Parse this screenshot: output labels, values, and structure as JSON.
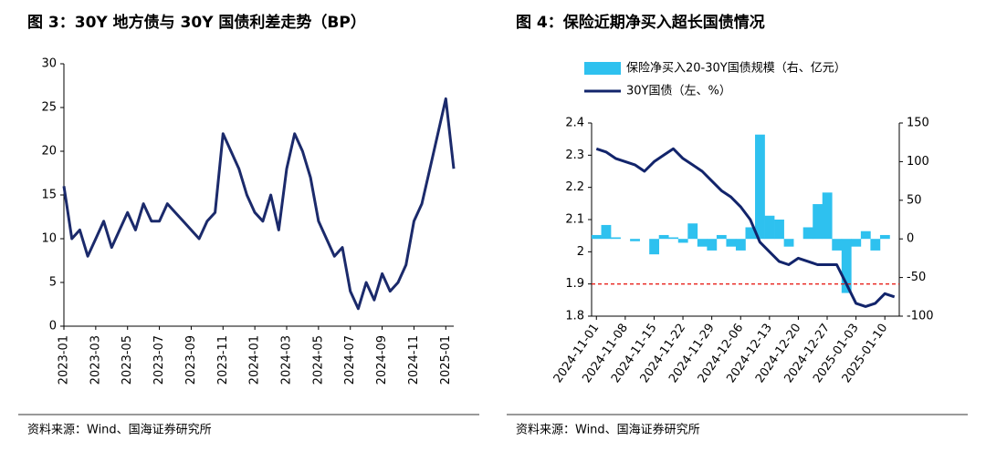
{
  "chart_data": [
    {
      "type": "line",
      "title": "图 3：30Y 地方债与 30Y 国债利差走势（BP）",
      "source": "资料来源：Wind、国海证券研究所",
      "categories": [
        "2023-01",
        null,
        null,
        null,
        "2023-03",
        null,
        null,
        null,
        "2023-05",
        null,
        null,
        null,
        "2023-07",
        null,
        null,
        null,
        "2023-09",
        null,
        null,
        null,
        "2023-11",
        null,
        null,
        null,
        "2024-01",
        null,
        null,
        null,
        "2024-03",
        null,
        null,
        null,
        "2024-05",
        null,
        null,
        null,
        "2024-07",
        null,
        null,
        null,
        "2024-09",
        null,
        null,
        null,
        "2024-11",
        null,
        null,
        null,
        "2025-01",
        null
      ],
      "values": [
        16,
        10,
        11,
        8,
        10,
        12,
        9,
        11,
        13,
        11,
        14,
        12,
        12,
        14,
        13,
        12,
        11,
        10,
        12,
        13,
        22,
        20,
        18,
        15,
        13,
        12,
        15,
        11,
        18,
        22,
        20,
        17,
        12,
        10,
        8,
        9,
        4,
        2,
        5,
        3,
        6,
        4,
        5,
        7,
        12,
        14,
        18,
        22,
        26,
        18
      ],
      "color": "#1b2a6b",
      "ylim": [
        0,
        30
      ],
      "yticks": [
        0,
        5,
        10,
        15,
        20,
        25,
        30
      ]
    },
    {
      "type": "combo",
      "title": "图 4：保险近期净买入超长国债情况",
      "source": "资料来源：Wind、国海证券研究所",
      "categories": [
        "2024-11-01",
        null,
        null,
        "2024-11-08",
        null,
        null,
        "2024-11-15",
        null,
        null,
        "2024-11-22",
        null,
        null,
        "2024-11-29",
        null,
        null,
        "2024-12-06",
        null,
        null,
        "2024-12-13",
        null,
        null,
        "2024-12-20",
        null,
        null,
        "2024-12-27",
        null,
        null,
        "2025-01-03",
        null,
        null,
        "2025-01-10",
        null
      ],
      "series": [
        {
          "name": "保险净买入20-30Y国债规模（右、亿元）",
          "type": "bar",
          "axis": "y2",
          "color": "#2ec1ef",
          "values": [
            5,
            18,
            2,
            0,
            -3,
            0,
            -20,
            5,
            2,
            -5,
            20,
            -10,
            -15,
            5,
            -10,
            -15,
            15,
            135,
            30,
            25,
            -10,
            0,
            15,
            45,
            60,
            -15,
            -70,
            -10,
            10,
            -15,
            5,
            0
          ]
        },
        {
          "name": "30Y国债（左、%）",
          "type": "line",
          "color": "#12246b",
          "values": [
            2.32,
            2.31,
            2.29,
            2.28,
            2.27,
            2.25,
            2.28,
            2.3,
            2.32,
            2.29,
            2.27,
            2.25,
            2.22,
            2.19,
            2.17,
            2.14,
            2.1,
            2.03,
            2,
            1.97,
            1.96,
            1.98,
            1.97,
            1.96,
            1.96,
            1.96,
            1.9,
            1.84,
            1.83,
            1.84,
            1.87,
            1.86
          ]
        }
      ],
      "hline": 1.9,
      "hline_color": "#e8231d",
      "ylim": [
        1.8,
        2.4
      ],
      "yticks": [
        1.8,
        1.9,
        2,
        2.1,
        2.2,
        2.3,
        2.4
      ],
      "y2lim": [
        -100,
        150
      ],
      "y2ticks": [
        -100,
        -50,
        0,
        50,
        100,
        150
      ]
    }
  ]
}
